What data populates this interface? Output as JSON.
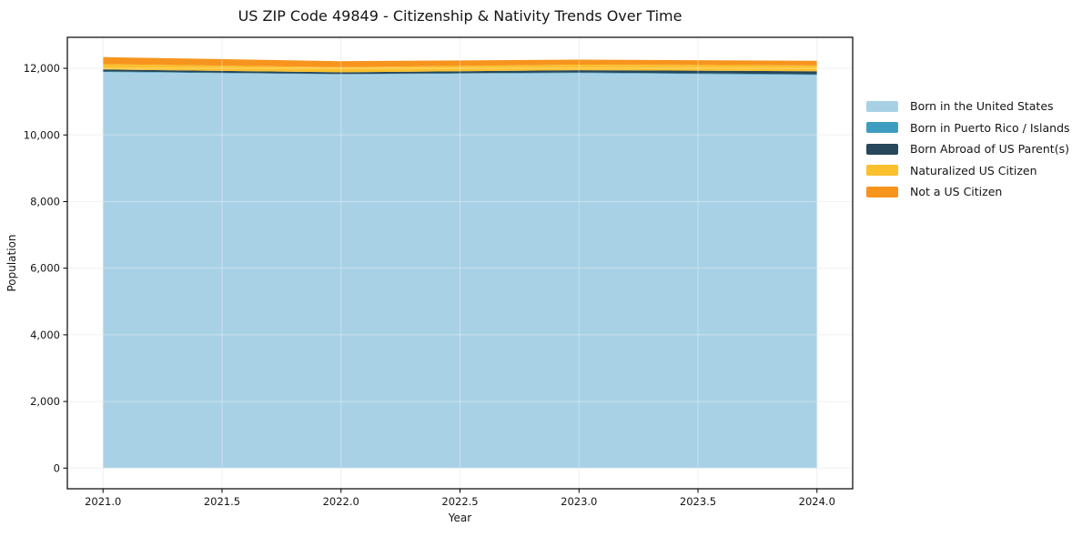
{
  "title": "US ZIP Code 49849 - Citizenship & Nativity Trends Over Time",
  "chart_data": {
    "type": "area",
    "stacked": true,
    "title": "US ZIP Code 49849 - Citizenship & Nativity Trends Over Time",
    "xlabel": "Year",
    "ylabel": "Population",
    "x": [
      2021,
      2022,
      2023,
      2024
    ],
    "series": [
      {
        "name": "Born in the United States",
        "color": "#A9D1E6",
        "values": [
          11890,
          11820,
          11860,
          11800
        ]
      },
      {
        "name": "Born in Puerto Rico / Islands",
        "color": "#3D9DC0",
        "values": [
          15,
          10,
          15,
          20
        ]
      },
      {
        "name": "Born Abroad of US Parent(s)",
        "color": "#27475A",
        "values": [
          60,
          50,
          70,
          90
        ]
      },
      {
        "name": "Naturalized US Citizen",
        "color": "#FBC02D",
        "values": [
          160,
          155,
          165,
          175
        ]
      },
      {
        "name": "Not a US Citizen",
        "color": "#F7941E",
        "values": [
          210,
          180,
          150,
          140
        ]
      }
    ],
    "xlim": [
      2020.85,
      2024.15
    ],
    "ylim": [
      -620,
      12930
    ],
    "xticks": [
      2021.0,
      2021.5,
      2022.0,
      2022.5,
      2023.0,
      2023.5,
      2024.0
    ],
    "xtick_labels": [
      "2021.0",
      "2021.5",
      "2022.0",
      "2022.5",
      "2023.0",
      "2023.5",
      "2024.0"
    ],
    "yticks": [
      0,
      2000,
      4000,
      6000,
      8000,
      10000,
      12000
    ],
    "ytick_labels": [
      "0",
      "2,000",
      "4,000",
      "6,000",
      "8,000",
      "10,000",
      "12,000"
    ],
    "grid": true,
    "legend_position": "right"
  }
}
